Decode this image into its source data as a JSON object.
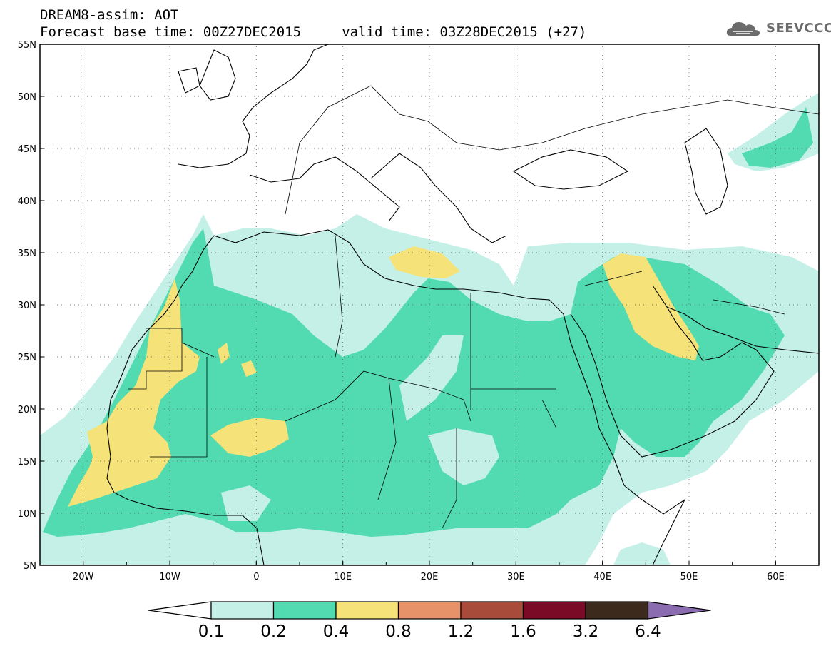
{
  "header": {
    "title_line1": "DREAM8-assim: AOT",
    "title_line2": "Forecast base time: 00Z27DEC2015     valid time: 03Z28DEC2015 (+27)",
    "logo_text": "SEEVCCC"
  },
  "map": {
    "lat_labels": [
      "55N",
      "50N",
      "45N",
      "40N",
      "35N",
      "30N",
      "25N",
      "20N",
      "15N",
      "10N",
      "5N"
    ],
    "lon_labels": [
      "20W",
      "10W",
      "0",
      "10E",
      "20E",
      "30E",
      "40E",
      "50E",
      "60E"
    ]
  },
  "colorbar": {
    "levels": [
      "0.1",
      "0.2",
      "0.4",
      "0.8",
      "1.2",
      "1.6",
      "3.2",
      "6.4"
    ],
    "colors": [
      "#c4f0e8",
      "#52dbb0",
      "#f5e37a",
      "#e8926a",
      "#a84b3a",
      "#7a0a26",
      "#3c2a1c"
    ],
    "over_color": "#8c6cb0",
    "under_color": "#ffffff"
  }
}
